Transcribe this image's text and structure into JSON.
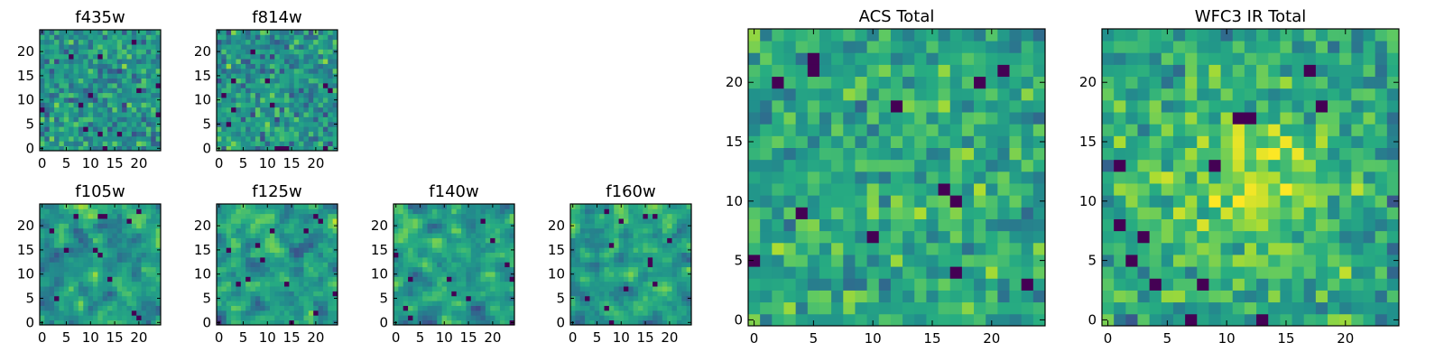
{
  "chart_data": [
    {
      "type": "heatmap",
      "title": "f435w",
      "grid_size": 25,
      "colormap": "viridis",
      "seed": 11,
      "smooth": 0,
      "bias": 0.52,
      "spread": 0.9,
      "xticks": [
        "0",
        "5",
        "10",
        "15",
        "20"
      ],
      "yticks": [
        "0",
        "5",
        "10",
        "15",
        "20"
      ],
      "xlim": [
        -0.5,
        24.5
      ],
      "ylim": [
        -0.5,
        24.5
      ]
    },
    {
      "type": "heatmap",
      "title": "f814w",
      "grid_size": 25,
      "colormap": "viridis",
      "seed": 23,
      "smooth": 0,
      "bias": 0.52,
      "spread": 0.9,
      "xticks": [
        "0",
        "5",
        "10",
        "15",
        "20"
      ],
      "yticks": [
        "0",
        "5",
        "10",
        "15",
        "20"
      ],
      "xlim": [
        -0.5,
        24.5
      ],
      "ylim": [
        -0.5,
        24.5
      ]
    },
    {
      "type": "heatmap",
      "title": "f105w",
      "grid_size": 25,
      "colormap": "viridis",
      "seed": 37,
      "smooth": 1,
      "bias": 0.55,
      "spread": 1.1,
      "xticks": [
        "0",
        "5",
        "10",
        "15",
        "20"
      ],
      "yticks": [
        "0",
        "5",
        "10",
        "15",
        "20"
      ],
      "xlim": [
        -0.5,
        24.5
      ],
      "ylim": [
        -0.5,
        24.5
      ]
    },
    {
      "type": "heatmap",
      "title": "f125w",
      "grid_size": 25,
      "colormap": "viridis",
      "seed": 41,
      "smooth": 1,
      "bias": 0.55,
      "spread": 1.1,
      "xticks": [
        "0",
        "5",
        "10",
        "15",
        "20"
      ],
      "yticks": [
        "0",
        "5",
        "10",
        "15",
        "20"
      ],
      "xlim": [
        -0.5,
        24.5
      ],
      "ylim": [
        -0.5,
        24.5
      ]
    },
    {
      "type": "heatmap",
      "title": "f140w",
      "grid_size": 25,
      "colormap": "viridis",
      "seed": 53,
      "smooth": 1,
      "bias": 0.55,
      "spread": 1.1,
      "xticks": [
        "0",
        "5",
        "10",
        "15",
        "20"
      ],
      "yticks": [
        "0",
        "5",
        "10",
        "15",
        "20"
      ],
      "xlim": [
        -0.5,
        24.5
      ],
      "ylim": [
        -0.5,
        24.5
      ]
    },
    {
      "type": "heatmap",
      "title": "f160w",
      "grid_size": 25,
      "colormap": "viridis",
      "seed": 67,
      "smooth": 1,
      "bias": 0.55,
      "spread": 1.1,
      "xticks": [
        "0",
        "5",
        "10",
        "15",
        "20"
      ],
      "yticks": [
        "0",
        "5",
        "10",
        "15",
        "20"
      ],
      "xlim": [
        -0.5,
        24.5
      ],
      "ylim": [
        -0.5,
        24.5
      ]
    },
    {
      "type": "heatmap",
      "title": "ACS Total",
      "grid_size": 25,
      "colormap": "viridis",
      "seed": 79,
      "smooth": 0,
      "bias": 0.6,
      "spread": 0.8,
      "xticks": [
        "0",
        "5",
        "10",
        "15",
        "20"
      ],
      "yticks": [
        "0",
        "5",
        "10",
        "15",
        "20"
      ],
      "xlim": [
        -0.5,
        24.5
      ],
      "ylim": [
        -0.5,
        24.5
      ]
    },
    {
      "type": "heatmap",
      "title": "WFC3 IR Total",
      "grid_size": 25,
      "colormap": "viridis",
      "seed": 97,
      "smooth": 0,
      "bias": 0.58,
      "spread": 0.8,
      "center_peak": 0.35,
      "xticks": [
        "0",
        "5",
        "10",
        "15",
        "20"
      ],
      "yticks": [
        "0",
        "5",
        "10",
        "15",
        "20"
      ],
      "xlim": [
        -0.5,
        24.5
      ],
      "ylim": [
        -0.5,
        24.5
      ]
    }
  ]
}
